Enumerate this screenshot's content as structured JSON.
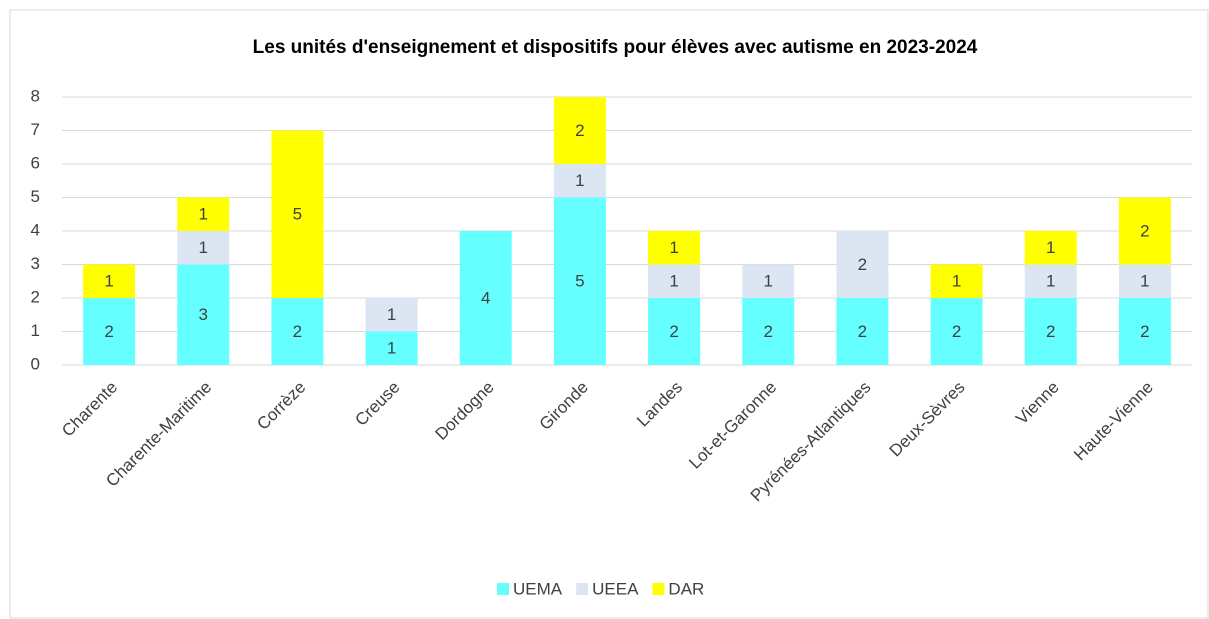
{
  "chart_data": {
    "type": "stacked_bar",
    "title": "Les unités d'enseignement et dispositifs pour élèves avec autisme en 2023-2024",
    "categories": [
      "Charente",
      "Charente-Maritime",
      "Corrèze",
      "Creuse",
      "Dordogne",
      "Gironde",
      "Landes",
      "Lot-et-Garonne",
      "Pyrénées-Atlantiques",
      "Deux-Sèvres",
      "Vienne",
      "Haute-Vienne"
    ],
    "series": [
      {
        "name": "UEMA",
        "color": "#66ffff",
        "values": [
          2,
          3,
          2,
          1,
          4,
          5,
          2,
          2,
          2,
          2,
          2,
          2
        ]
      },
      {
        "name": "UEEA",
        "color": "#dce6f2",
        "values": [
          null,
          1,
          null,
          1,
          null,
          1,
          1,
          1,
          2,
          null,
          1,
          1
        ]
      },
      {
        "name": "DAR",
        "color": "#ffff00",
        "values": [
          1,
          1,
          5,
          null,
          null,
          2,
          1,
          null,
          null,
          1,
          1,
          2
        ]
      }
    ],
    "ylim": [
      0,
      8
    ],
    "yticks": [
      0,
      1,
      2,
      3,
      4,
      5,
      6,
      7,
      8
    ],
    "grid": true,
    "legend": "bottom"
  }
}
